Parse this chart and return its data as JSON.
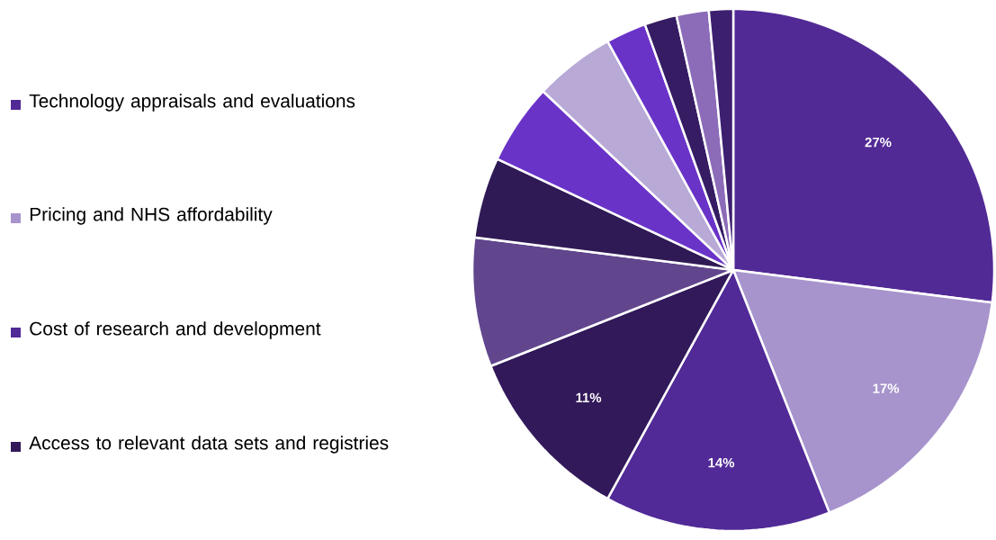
{
  "chart_data": {
    "type": "pie",
    "categories": [
      "Technology appraisals and evaluations",
      "Pricing and NHS affordability",
      "Cost of research and development",
      "Access to relevant data sets and registries",
      null,
      null,
      null,
      null,
      null,
      null,
      null,
      null
    ],
    "values": [
      27,
      17,
      14,
      11,
      8,
      5,
      5,
      5,
      2.5,
      2,
      2,
      1.5
    ],
    "value_labels": [
      "27%",
      "17%",
      "14%",
      "11%",
      null,
      null,
      null,
      null,
      null,
      null,
      null,
      null
    ],
    "colors": [
      "#522a96",
      "#a794cc",
      "#512a97",
      "#32195a",
      "#61468e",
      "#301a55",
      "#6a33c8",
      "#b8a9d6",
      "#6a33c8",
      "#351c63",
      "#8c6cb8",
      "#3d1f70"
    ],
    "legend": "left"
  }
}
